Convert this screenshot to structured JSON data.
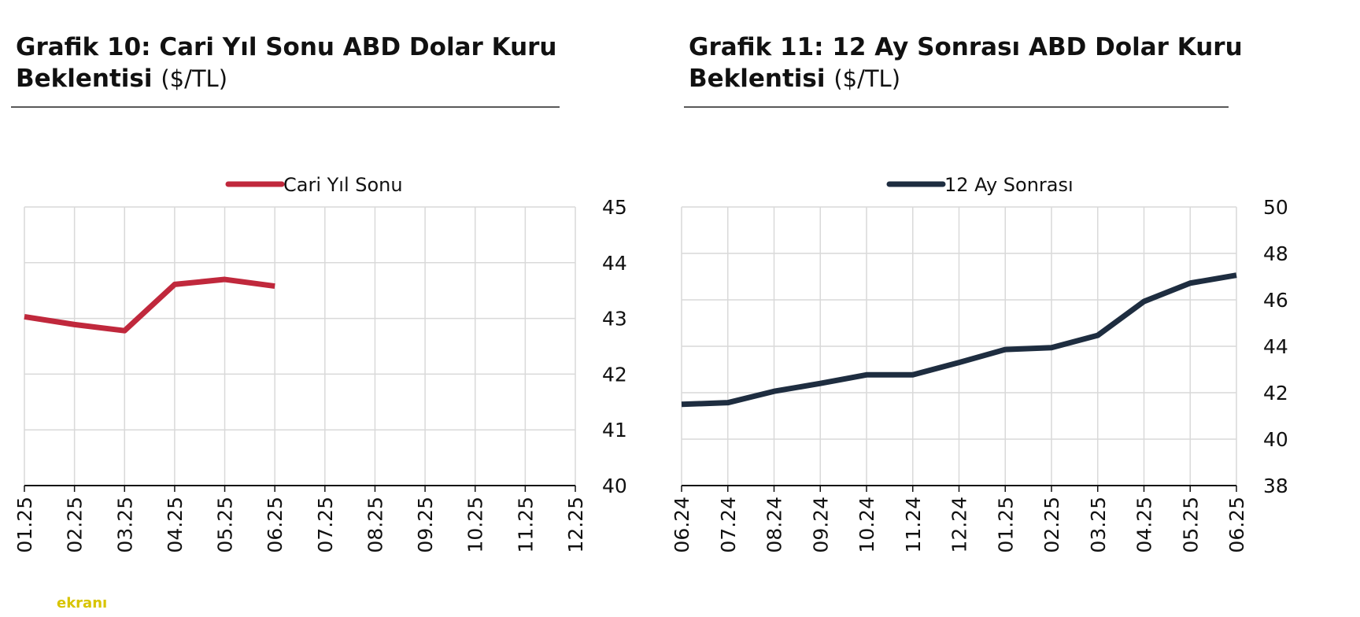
{
  "chart_data": [
    {
      "type": "line",
      "title": "Grafik 10: Cari Yıl Sonu ABD Dolar Kuru Beklentisi",
      "unit": "($/TL)",
      "categories": [
        "01.25",
        "02.25",
        "03.25",
        "04.25",
        "05.25",
        "06.25",
        "07.25",
        "08.25",
        "09.25",
        "10.25",
        "11.25",
        "12.25"
      ],
      "series": [
        {
          "name": "Cari Yıl Sonu",
          "color": "#c0283c",
          "values": [
            43.03,
            42.89,
            42.78,
            43.61,
            43.7,
            43.58,
            null,
            null,
            null,
            null,
            null,
            null
          ]
        }
      ],
      "ylim": [
        40,
        45
      ],
      "yticks": [
        40,
        41,
        42,
        43,
        44,
        45
      ],
      "y_axis_side": "right",
      "grid": true,
      "legend": "top"
    },
    {
      "type": "line",
      "title": "Grafik 11: 12 Ay Sonrası ABD Dolar Kuru Beklentisi",
      "unit": "($/TL)",
      "categories": [
        "06.24",
        "07.24",
        "08.24",
        "09.24",
        "10.24",
        "11.24",
        "12.24",
        "01.25",
        "02.25",
        "03.25",
        "04.25",
        "05.25",
        "06.25"
      ],
      "series": [
        {
          "name": "12 Ay Sonrası",
          "color": "#1e2d40",
          "values": [
            41.5,
            41.57,
            42.06,
            42.4,
            42.77,
            42.77,
            43.3,
            43.86,
            43.94,
            44.47,
            45.93,
            46.72,
            47.06
          ]
        }
      ],
      "ylim": [
        38,
        50
      ],
      "yticks": [
        38,
        40,
        42,
        44,
        46,
        48,
        50
      ],
      "y_axis_side": "right",
      "grid": true,
      "legend": "top"
    }
  ],
  "watermark": "ekranı"
}
